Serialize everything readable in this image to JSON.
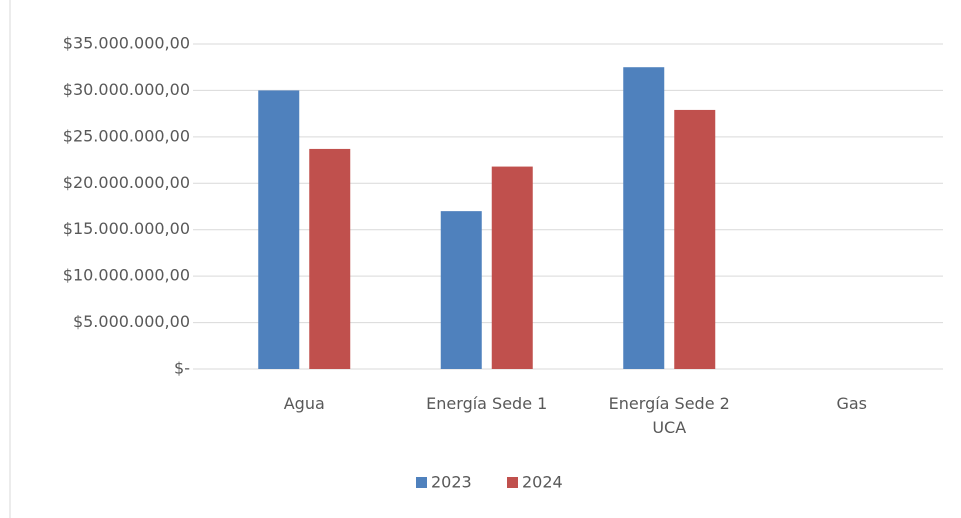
{
  "chart_data": {
    "type": "bar",
    "categories": [
      "Agua",
      "Energía Sede 1",
      "Energía Sede 2 UCA",
      "Gas"
    ],
    "series": [
      {
        "name": "2023",
        "color": "#4f81bd",
        "values": [
          30000000,
          17000000,
          32500000,
          0
        ]
      },
      {
        "name": "2024",
        "color": "#c0504d",
        "values": [
          23700000,
          21800000,
          27900000,
          0
        ]
      }
    ],
    "ylim": [
      0,
      35000000
    ],
    "yticks": [
      {
        "value": 0,
        "label": "$-"
      },
      {
        "value": 5000000,
        "label": "$5.000.000,00"
      },
      {
        "value": 10000000,
        "label": "$10.000.000,00"
      },
      {
        "value": 15000000,
        "label": "$15.000.000,00"
      },
      {
        "value": 20000000,
        "label": "$20.000.000,00"
      },
      {
        "value": 25000000,
        "label": "$25.000.000,00"
      },
      {
        "value": 30000000,
        "label": "$30.000.000,00"
      },
      {
        "value": 35000000,
        "label": "$35.000.000,00"
      }
    ],
    "grid": true,
    "legend": "bottom"
  }
}
